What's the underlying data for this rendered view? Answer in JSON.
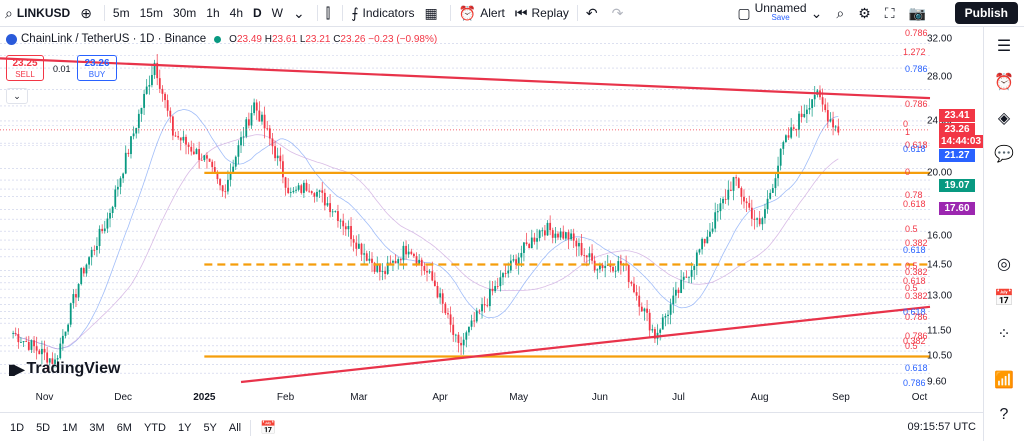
{
  "toolbar": {
    "symbol": "LINKUSD",
    "intervals": [
      "5m",
      "15m",
      "30m",
      "1h",
      "4h",
      "D",
      "W"
    ],
    "active_interval": "D",
    "indicators_label": "Indicators",
    "alert_label": "Alert",
    "replay_label": "Replay",
    "layout_name": "Unnamed",
    "save_label": "Save",
    "publish_label": "Publish"
  },
  "legend": {
    "title": "ChainLink / TetherUS · 1D · Binance",
    "o_key": "O",
    "o_val": "23.49",
    "h_key": "H",
    "h_val": "23.61",
    "l_key": "L",
    "l_val": "23.21",
    "c_key": "C",
    "c_val": "23.26",
    "change": "−0.23 (−0.98%)",
    "sell_price": "23.25",
    "sell_label": "SELL",
    "spread": "0.01",
    "buy_price": "23.26",
    "buy_label": "BUY"
  },
  "price_scale": {
    "ticks": [
      "32.00",
      "28.00",
      "24.00",
      "20.00",
      "16.00",
      "14.50",
      "13.00",
      "11.50",
      "10.50",
      "9.60"
    ],
    "tags": [
      {
        "text": "23.41",
        "color": "#f23645"
      },
      {
        "text": "23.26",
        "color": "#f23645"
      },
      {
        "text": "14:44:03",
        "color": "#f23645"
      },
      {
        "text": "21.27",
        "color": "#2962ff"
      },
      {
        "text": "19.07",
        "color": "#089981"
      },
      {
        "text": "17.60",
        "color": "#9c27b0"
      }
    ],
    "fib_labels": [
      {
        "text": "0.786",
        "color": "#f23645"
      },
      {
        "text": "1.272",
        "color": "#f23645"
      },
      {
        "text": "0.786",
        "color": "#2962ff"
      },
      {
        "text": "0.786",
        "color": "#f23645"
      },
      {
        "text": "0",
        "color": "#f23645"
      },
      {
        "text": "1",
        "color": "#f23645"
      },
      {
        "text": "0.618",
        "color": "#f23645"
      },
      {
        "text": "0.618",
        "color": "#2962ff"
      },
      {
        "text": "0",
        "color": "#f23645"
      },
      {
        "text": "0.78",
        "color": "#f23645"
      },
      {
        "text": "0.618",
        "color": "#f23645"
      },
      {
        "text": "0.5",
        "color": "#f23645"
      },
      {
        "text": "0.382",
        "color": "#f23645"
      },
      {
        "text": "0.618",
        "color": "#2962ff"
      },
      {
        "text": "0.5",
        "color": "#f23645"
      },
      {
        "text": "0.382",
        "color": "#f23645"
      },
      {
        "text": "0.618",
        "color": "#f23645"
      },
      {
        "text": "0.5",
        "color": "#f23645"
      },
      {
        "text": "0.382",
        "color": "#f23645"
      },
      {
        "text": "0.618",
        "color": "#2962ff"
      },
      {
        "text": "0.786",
        "color": "#f23645"
      },
      {
        "text": "0.786",
        "color": "#f23645"
      },
      {
        "text": "0.382",
        "color": "#f23645"
      },
      {
        "text": "0.5",
        "color": "#f23645"
      },
      {
        "text": "0.618",
        "color": "#2962ff"
      },
      {
        "text": "0.786",
        "color": "#2962ff"
      }
    ]
  },
  "time_axis": {
    "labels": [
      "Nov",
      "Dec",
      "2025",
      "Feb",
      "Mar",
      "Apr",
      "May",
      "Jun",
      "Jul",
      "Aug",
      "Sep",
      "Oct"
    ]
  },
  "bottombar": {
    "ranges": [
      "1D",
      "5D",
      "1M",
      "3M",
      "6M",
      "YTD",
      "1Y",
      "5Y",
      "All"
    ],
    "clock": "09:15:57 UTC"
  },
  "logo_text": "TradingView",
  "colors": {
    "up": "#089981",
    "down": "#f23645",
    "trendline": "#e8334a",
    "support": "#f59e0b",
    "accent": "#2962ff"
  },
  "chart_data": {
    "type": "candlestick",
    "symbol": "ChainLink / TetherUS",
    "interval": "1D",
    "exchange": "Binance",
    "y_scale": "log",
    "ylim": [
      9.6,
      32.0
    ],
    "x_range": [
      "2024-10-15",
      "2025-10-05"
    ],
    "path_points": [
      [
        "2024-10-20",
        11.4
      ],
      [
        "2024-11-05",
        10.3
      ],
      [
        "2024-11-15",
        14.0
      ],
      [
        "2024-11-25",
        17.0
      ],
      [
        "2024-12-05",
        23.0
      ],
      [
        "2024-12-13",
        29.5
      ],
      [
        "2024-12-20",
        23.0
      ],
      [
        "2025-01-01",
        21.0
      ],
      [
        "2025-01-08",
        18.7
      ],
      [
        "2025-01-20",
        25.5
      ],
      [
        "2025-01-27",
        22.0
      ],
      [
        "2025-02-03",
        18.5
      ],
      [
        "2025-02-10",
        19.2
      ],
      [
        "2025-02-20",
        17.5
      ],
      [
        "2025-03-01",
        15.5
      ],
      [
        "2025-03-10",
        14.0
      ],
      [
        "2025-03-20",
        15.5
      ],
      [
        "2025-03-30",
        13.5
      ],
      [
        "2025-04-08",
        10.8
      ],
      [
        "2025-04-20",
        13.0
      ],
      [
        "2025-04-30",
        14.8
      ],
      [
        "2025-05-10",
        16.5
      ],
      [
        "2025-05-20",
        16.0
      ],
      [
        "2025-05-30",
        14.5
      ],
      [
        "2025-06-10",
        14.5
      ],
      [
        "2025-06-22",
        11.3
      ],
      [
        "2025-07-01",
        13.2
      ],
      [
        "2025-07-10",
        15.5
      ],
      [
        "2025-07-22",
        19.5
      ],
      [
        "2025-08-01",
        16.5
      ],
      [
        "2025-08-10",
        22.0
      ],
      [
        "2025-08-22",
        26.5
      ],
      [
        "2025-08-27",
        24.5
      ],
      [
        "2025-08-31",
        23.26
      ]
    ],
    "horizontal_lines": [
      {
        "price": 20.0,
        "style": "solid",
        "color": "#f59e0b"
      },
      {
        "price": 14.5,
        "style": "dashed",
        "color": "#f59e0b"
      },
      {
        "price": 10.5,
        "style": "solid",
        "color": "#f59e0b"
      }
    ],
    "trendlines": [
      {
        "from": [
          "2024-10-15",
          29.9
        ],
        "to": [
          "2025-10-05",
          26.0
        ],
        "color": "#e8334a"
      },
      {
        "from": [
          "2025-01-15",
          9.6
        ],
        "to": [
          "2025-10-05",
          12.5
        ],
        "color": "#e8334a"
      }
    ],
    "last_price": 23.26,
    "ohlc": {
      "open": 23.49,
      "high": 23.61,
      "low": 23.21,
      "close": 23.26
    },
    "change": -0.23,
    "change_pct": -0.98
  }
}
